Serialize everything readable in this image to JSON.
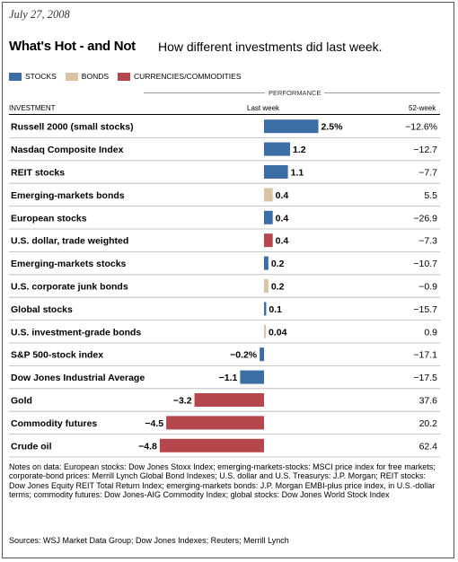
{
  "date": "July 27, 2008",
  "title": "What's Hot - and Not",
  "subtitle": "How different investments did last week.",
  "legend": [
    {
      "label": "STOCKS",
      "color": "#3a6ea5"
    },
    {
      "label": "BONDS",
      "color": "#d9c3a5"
    },
    {
      "label": "CURRENCIES/COMMODITIES",
      "color": "#b5474c"
    }
  ],
  "headers": {
    "performance": "PERFORMANCE",
    "investment": "INVESTMENT",
    "last_week": "Last week",
    "week52": "52-week"
  },
  "chart_data": {
    "type": "bar",
    "orientation": "horizontal",
    "xlim": [
      -5,
      2.5
    ],
    "categories": [
      "Russell 2000 (small stocks)",
      "Nasdaq Composite Index",
      "REIT stocks",
      "Emerging-markets bonds",
      "European stocks",
      "U.S. dollar, trade weighted",
      "Emerging-markets stocks",
      "U.S. corporate junk bonds",
      "Global stocks",
      "U.S. investment-grade bonds",
      "S&P 500-stock index",
      "Dow Jones Industrial Average",
      "Gold",
      "Commodity futures",
      "Crude oil"
    ],
    "values": [
      2.5,
      1.2,
      1.1,
      0.4,
      0.4,
      0.4,
      0.2,
      0.2,
      0.1,
      0.04,
      -0.2,
      -1.1,
      -3.2,
      -4.5,
      -4.8
    ],
    "value_labels": [
      "2.5%",
      "1.2",
      "1.1",
      "0.4",
      "0.4",
      "0.4",
      "0.2",
      "0.2",
      "0.1",
      "0.04",
      "−0.2%",
      "−1.1",
      "−3.2",
      "−4.5",
      "−4.8"
    ],
    "groups": [
      "stocks",
      "stocks",
      "stocks",
      "bonds",
      "stocks",
      "currencies",
      "stocks",
      "bonds",
      "stocks",
      "bonds",
      "stocks",
      "stocks",
      "commodities",
      "commodities",
      "commodities"
    ],
    "week52": [
      "−12.6%",
      "−12.7",
      "−7.7",
      "5.5",
      "−26.9",
      "−7.3",
      "−10.7",
      "−0.9",
      "−15.7",
      "0.9",
      "−17.1",
      "−17.5",
      "37.6",
      "20.2",
      "62.4"
    ]
  },
  "notes": "Notes on data: European stocks: Dow Jones Stoxx Index; emerging-markets-stocks: MSCI price index for free markets; corporate-bond prices: Merrill Lynch Global Bond Indexes; U.S. dollar and U.S. Treasurys: J.P. Morgan; REIT stocks: Dow Jones Equity REIT Total Return Index; emerging-markets bonds: J.P. Morgan EMBI-plus price index, in U.S.-dollar terms; commodity futures: Dow Jones-AIG Commodity Index; global stocks: Dow Jones World Stock Index",
  "sources": "Sources: WSJ Market Data Group; Dow Jones Indexes; Reuters; Merrill Lynch"
}
